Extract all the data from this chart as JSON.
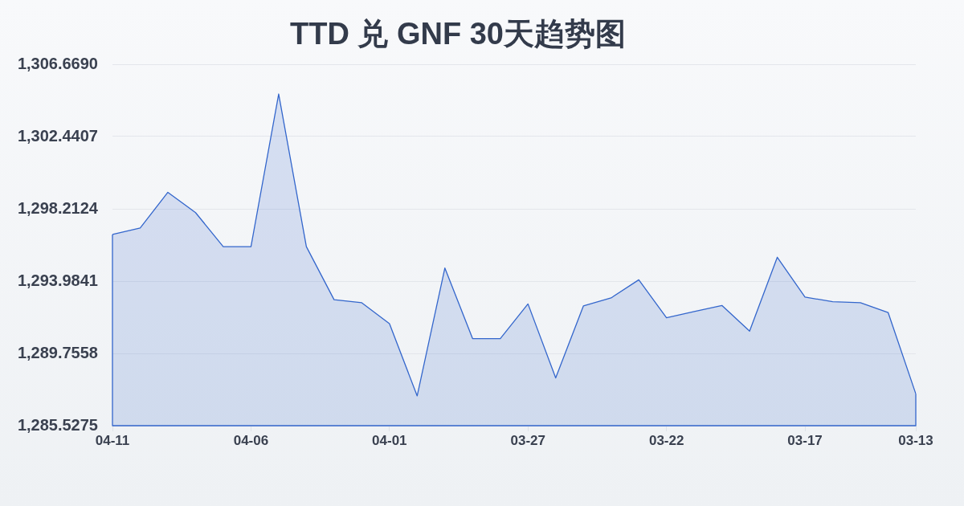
{
  "chart_data": {
    "type": "area",
    "title": "TTD 兑 GNF 30天趋势图",
    "categories": [
      "04-11",
      null,
      null,
      null,
      null,
      "04-06",
      null,
      null,
      null,
      null,
      "04-01",
      null,
      null,
      null,
      null,
      "03-27",
      null,
      null,
      null,
      null,
      "03-22",
      null,
      null,
      null,
      null,
      "03-17",
      null,
      null,
      null,
      "03-13"
    ],
    "values": [
      1296.71,
      1297.09,
      1299.18,
      1297.99,
      1296.0,
      1296.0,
      1304.93,
      1296.0,
      1292.9,
      1292.72,
      1291.49,
      1287.27,
      1294.75,
      1290.62,
      1290.62,
      1292.65,
      1288.32,
      1292.53,
      1293.0,
      1294.06,
      1291.84,
      1292.2,
      1292.56,
      1291.06,
      1295.38,
      1293.05,
      1292.78,
      1292.72,
      1292.15,
      1287.39
    ],
    "color": "#3366cc",
    "ylim": [
      1285.5275,
      1306.669
    ],
    "yticks": [
      {
        "value": 1285.5275,
        "label": "1,285.5275"
      },
      {
        "value": 1289.7558,
        "label": "1,289.7558"
      },
      {
        "value": 1293.9841,
        "label": "1,293.9841"
      },
      {
        "value": 1298.2124,
        "label": "1,298.2124"
      },
      {
        "value": 1302.4407,
        "label": "1,302.4407"
      },
      {
        "value": 1306.669,
        "label": "1,306.6690"
      }
    ],
    "grid": "y"
  }
}
